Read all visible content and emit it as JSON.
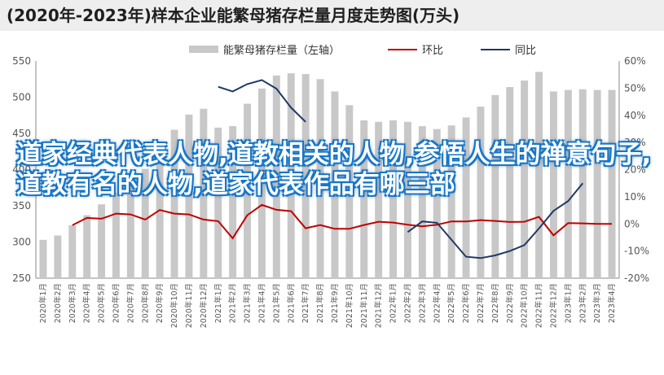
{
  "title": "(2020年-2023年)样本企业能繁母猪存栏量月度走势图(万头)",
  "overlay_text": "道家经典代表人物,道教相关的人物,参悟人生的禅意句子,道教有名的人物,道家代表作品有哪三部",
  "chart_data": {
    "type": "bar+line",
    "categories": [
      "2020年1月",
      "2020年2月",
      "2020年3月",
      "2020年4月",
      "2020年5月",
      "2020年6月",
      "2020年7月",
      "2020年8月",
      "2020年9月",
      "2020年10月",
      "2020年11月",
      "2020年12月",
      "2021年1月",
      "2021年2月",
      "2021年3月",
      "2021年4月",
      "2021年5月",
      "2021年6月",
      "2021年7月",
      "2021年8月",
      "2021年9月",
      "2021年10月",
      "2021年11月",
      "2021年12月",
      "2022年1月",
      "2022年2月",
      "2022年3月",
      "2022年4月",
      "2022年5月",
      "2022年6月",
      "2022年7月",
      "2022年8月",
      "2022年9月",
      "2022年10月",
      "2022年11月",
      "2022年12月",
      "2023年1月",
      "2023年2月",
      "2023年3月",
      "2023年4月"
    ],
    "series": [
      {
        "name": "能繁母猪存栏量（左轴）",
        "type": "bar",
        "axis": "left",
        "color": "#c8c8c8",
        "values": [
          303,
          309,
          323,
          337,
          352,
          368,
          385,
          401,
          428,
          455,
          476,
          484,
          458,
          460,
          491,
          512,
          530,
          533,
          532,
          525,
          508,
          489,
          468,
          466,
          468,
          466,
          460,
          456,
          461,
          472,
          487,
          503,
          514,
          523,
          535,
          508,
          510,
          511,
          510,
          510
        ]
      },
      {
        "name": "环比",
        "type": "line",
        "axis": "right",
        "color": "#c00000",
        "values": [
          null,
          null,
          -0.5,
          2.2,
          1.9,
          3.8,
          3.5,
          1.6,
          5.1,
          3.8,
          3.5,
          1.6,
          1.0,
          -5.3,
          3.2,
          7.0,
          5.2,
          4.7,
          -1.6,
          -0.4,
          -1.8,
          -1.8,
          -0.4,
          0.8,
          0.5,
          -0.3,
          -0.9,
          -0.3,
          0.9,
          0.9,
          1.4,
          1.1,
          0.7,
          0.8,
          2.6,
          -4.2,
          0.3,
          0.2,
          0,
          0
        ]
      },
      {
        "name": "同比",
        "type": "line",
        "axis": "right",
        "color": "#1f3864",
        "values": [
          null,
          null,
          null,
          null,
          null,
          null,
          null,
          null,
          null,
          null,
          null,
          null,
          50.5,
          48.8,
          51.5,
          53.0,
          49.8,
          42.8,
          37.6,
          null,
          null,
          null,
          null,
          null,
          null,
          -3.0,
          0.9,
          0.4,
          -5.8,
          -12.1,
          -12.6,
          -11.6,
          -10.0,
          -7.8,
          -1.7,
          4.8,
          8.4,
          15.0,
          null,
          null
        ]
      }
    ],
    "yleft": {
      "min": 250,
      "max": 550,
      "step": 50
    },
    "yright": {
      "min": -20,
      "max": 60,
      "step": 10,
      "unit": "%"
    },
    "legend_position": "top-center"
  }
}
